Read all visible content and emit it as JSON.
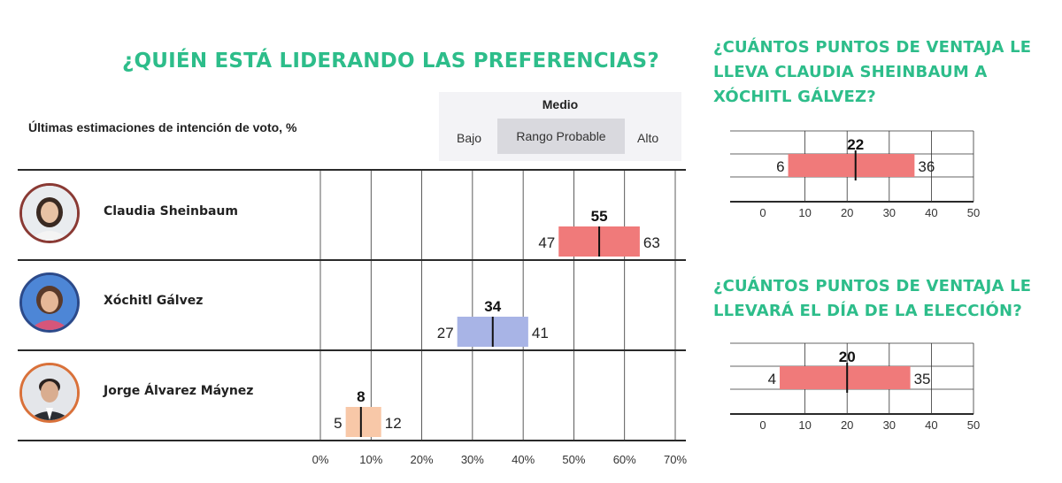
{
  "main": {
    "title": "¿QUIÉN ESTÁ LIDERANDO LAS PREFERENCIAS?",
    "subtitle": "Últimas estimaciones de intención de voto, %"
  },
  "legend": {
    "medio": "Medio",
    "bajo": "Bajo",
    "rango": "Rango Probable",
    "alto": "Alto"
  },
  "colors": {
    "accent": "#2dbd8a",
    "sheinbaum": "#f07a7a",
    "galvez": "#a8b4e6",
    "maynez": "#f8c8a8",
    "ring_sheinbaum": "#8a3a34",
    "ring_galvez": "#2c4a8a",
    "ring_maynez": "#d9713a"
  },
  "candidates": [
    {
      "name": "Claudia Sheinbaum",
      "photo_icon": "claudia-sheinbaum-photo-icon"
    },
    {
      "name": "Xóchitl Gálvez",
      "photo_icon": "xochitl-galvez-photo-icon"
    },
    {
      "name": "Jorge Álvarez Máynez",
      "photo_icon": "jorge-alvarez-maynez-photo-icon"
    }
  ],
  "side1": {
    "title": "¿CUÁNTOS PUNTOS DE VENTAJA LE LLEVA CLAUDIA SHEINBAUM A XÓCHITL GÁLVEZ?"
  },
  "side2": {
    "title": "¿CUÁNTOS PUNTOS DE VENTAJA LE LLEVARÁ EL DÍA DE LA ELECCIÓN?"
  },
  "chart_data": [
    {
      "type": "bar",
      "title": "¿QUIÉN ESTÁ LIDERANDO LAS PREFERENCIAS?",
      "subtitle": "Últimas estimaciones de intención de voto, %",
      "categories": [
        "Claudia Sheinbaum",
        "Xóchitl Gálvez",
        "Jorge Álvarez Máynez"
      ],
      "series": [
        {
          "name": "Bajo",
          "values": [
            47,
            27,
            5
          ]
        },
        {
          "name": "Medio",
          "values": [
            55,
            34,
            8
          ]
        },
        {
          "name": "Alto",
          "values": [
            63,
            41,
            12
          ]
        }
      ],
      "xlim": [
        0,
        70
      ],
      "xticks": [
        "0%",
        "10%",
        "20%",
        "30%",
        "40%",
        "50%",
        "60%",
        "70%"
      ],
      "grid": true,
      "legend": "top-right"
    },
    {
      "type": "bar",
      "title": "¿CUÁNTOS PUNTOS DE VENTAJA LE LLEVA CLAUDIA SHEINBAUM A XÓCHITL GÁLVEZ?",
      "low": 6,
      "mid": 22,
      "high": 36,
      "xlim": [
        0,
        50
      ],
      "xticks": [
        "0",
        "10",
        "20",
        "30",
        "40",
        "50"
      ]
    },
    {
      "type": "bar",
      "title": "¿CUÁNTOS PUNTOS DE VENTAJA LE LLEVARÁ EL DÍA DE LA ELECCIÓN?",
      "low": 4,
      "mid": 20,
      "high": 35,
      "xlim": [
        0,
        50
      ],
      "xticks": [
        "0",
        "10",
        "20",
        "30",
        "40",
        "50"
      ]
    }
  ]
}
